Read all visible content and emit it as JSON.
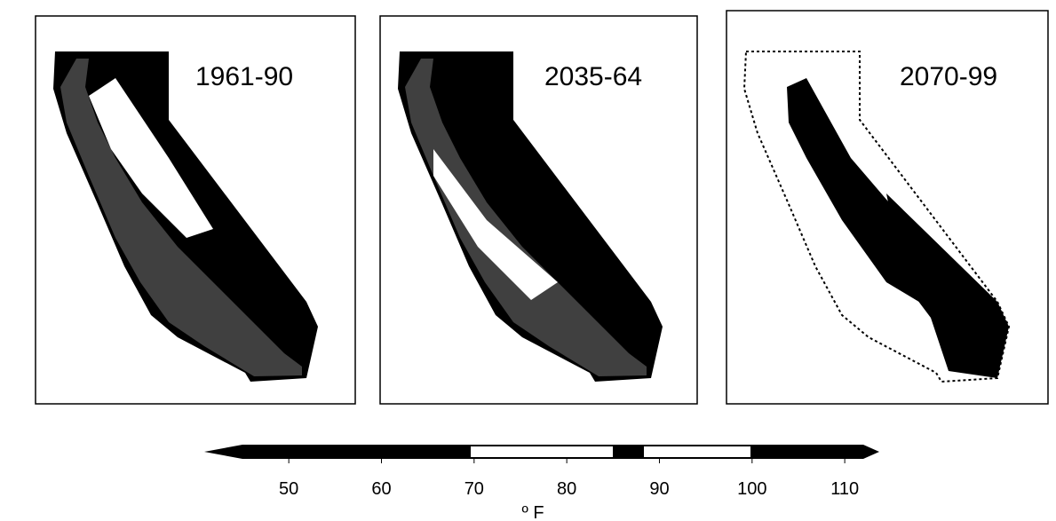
{
  "panels": [
    {
      "label": "1961-90"
    },
    {
      "label": "2035-64"
    },
    {
      "label": "2070-99"
    }
  ],
  "colorbar": {
    "lim": [
      45,
      112
    ],
    "ticks": [
      50,
      60,
      70,
      80,
      90,
      100,
      110
    ],
    "unit": "º F"
  }
}
